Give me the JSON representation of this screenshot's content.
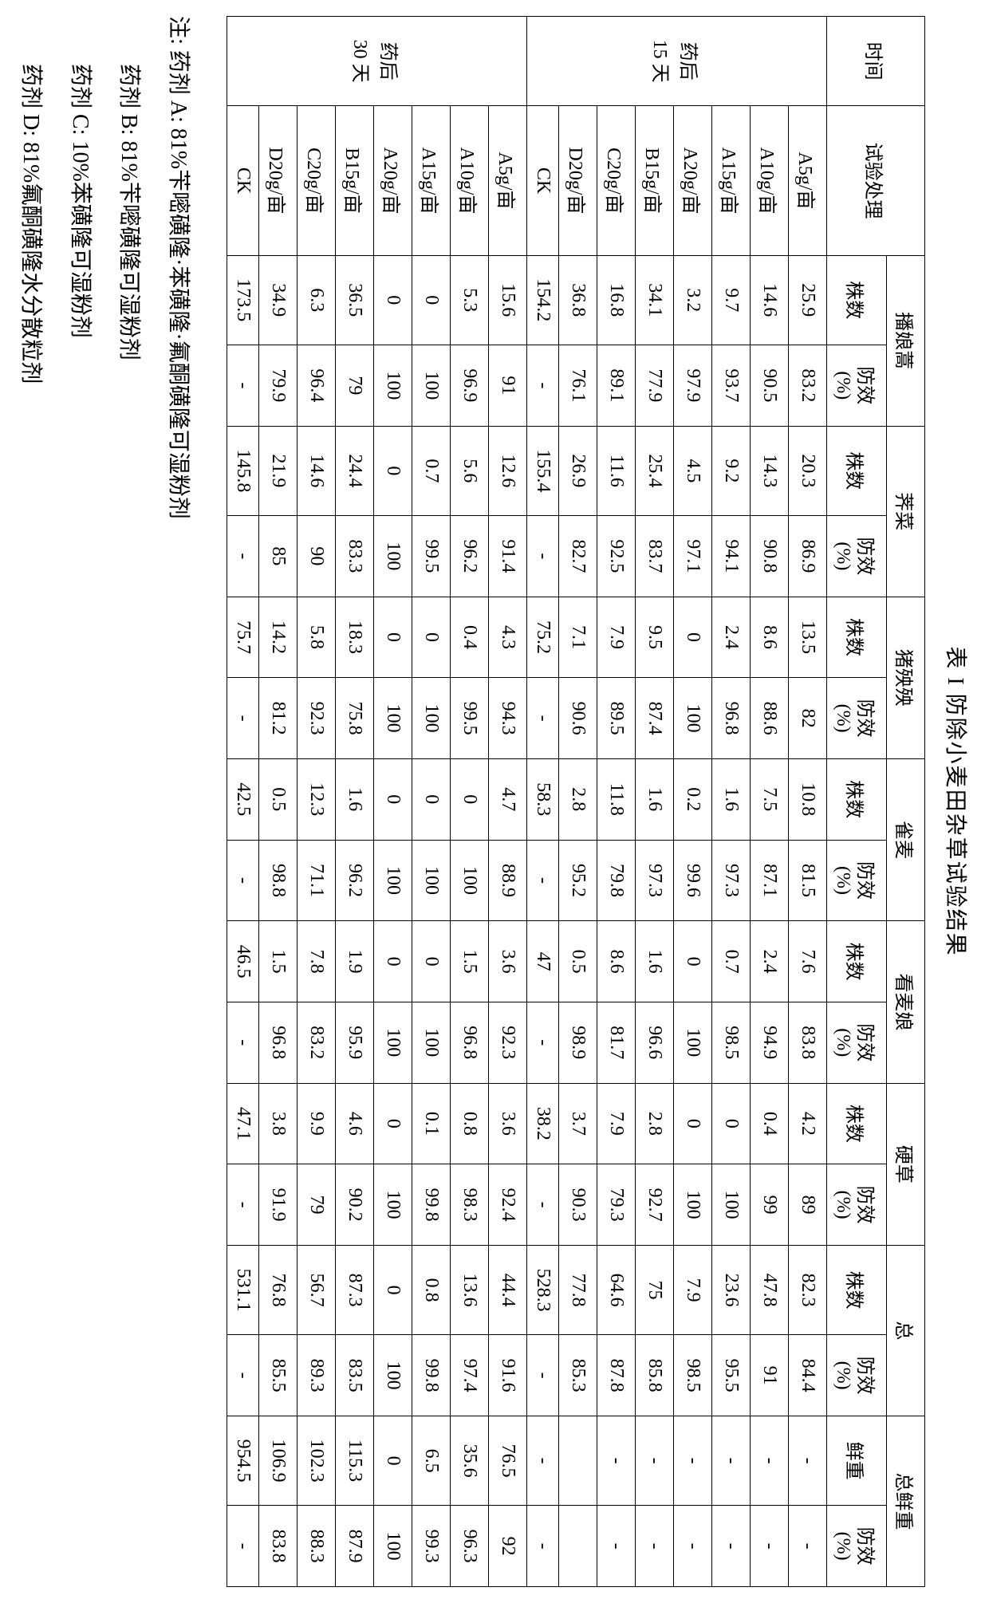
{
  "title": "表 I 防除小麦田杂草试验结果",
  "headers": {
    "time": "时间",
    "treatment": "试验处理",
    "groups": [
      "播娘蒿",
      "荠菜",
      "猪殃殃",
      "雀麦",
      "看麦娘",
      "硬草",
      "总",
      "总鲜重"
    ],
    "sub_count": "株数",
    "sub_eff": "防效\n(%)",
    "sub_weight": "鲜重",
    "sub_eff2": "防效\n(%)"
  },
  "periods": [
    {
      "label": "药后\n15 天",
      "rowspan": 8
    },
    {
      "label": "药后\n30 天",
      "rowspan": 8
    }
  ],
  "rows": [
    [
      "A5g/亩",
      "25.9",
      "83.2",
      "20.3",
      "86.9",
      "13.5",
      "82",
      "10.8",
      "81.5",
      "7.6",
      "83.8",
      "4.2",
      "89",
      "82.3",
      "84.4",
      "-",
      "-"
    ],
    [
      "A10g/亩",
      "14.6",
      "90.5",
      "14.3",
      "90.8",
      "8.6",
      "88.6",
      "7.5",
      "87.1",
      "2.4",
      "94.9",
      "0.4",
      "99",
      "47.8",
      "91",
      "-",
      "-"
    ],
    [
      "A15g/亩",
      "9.7",
      "93.7",
      "9.2",
      "94.1",
      "2.4",
      "96.8",
      "1.6",
      "97.3",
      "0.7",
      "98.5",
      "0",
      "100",
      "23.6",
      "95.5",
      "-",
      "-"
    ],
    [
      "A20g/亩",
      "3.2",
      "97.9",
      "4.5",
      "97.1",
      "0",
      "100",
      "0.2",
      "99.6",
      "0",
      "100",
      "0",
      "100",
      "7.9",
      "98.5",
      "-",
      "-"
    ],
    [
      "B15g/亩",
      "34.1",
      "77.9",
      "25.4",
      "83.7",
      "9.5",
      "87.4",
      "1.6",
      "97.3",
      "1.6",
      "96.6",
      "2.8",
      "92.7",
      "75",
      "85.8",
      "-",
      "-"
    ],
    [
      "C20g/亩",
      "16.8",
      "89.1",
      "11.6",
      "92.5",
      "7.9",
      "89.5",
      "11.8",
      "79.8",
      "8.6",
      "81.7",
      "7.9",
      "79.3",
      "64.6",
      "87.8",
      "-",
      "-"
    ],
    [
      "D20g/亩",
      "36.8",
      "76.1",
      "26.9",
      "82.7",
      "7.1",
      "90.6",
      "2.8",
      "95.2",
      "0.5",
      "98.9",
      "3.7",
      "90.3",
      "77.8",
      "85.3",
      "",
      ""
    ],
    [
      "CK",
      "154.2",
      "-",
      "155.4",
      "-",
      "75.2",
      "-",
      "58.3",
      "-",
      "47",
      "-",
      "38.2",
      "-",
      "528.3",
      "-",
      "-",
      "-"
    ],
    [
      "A5g/亩",
      "15.6",
      "91",
      "12.6",
      "91.4",
      "4.3",
      "94.3",
      "4.7",
      "88.9",
      "3.6",
      "92.3",
      "3.6",
      "92.4",
      "44.4",
      "91.6",
      "76.5",
      "92"
    ],
    [
      "A10g/亩",
      "5.3",
      "96.9",
      "5.6",
      "96.2",
      "0.4",
      "99.5",
      "0",
      "100",
      "1.5",
      "96.8",
      "0.8",
      "98.3",
      "13.6",
      "97.4",
      "35.6",
      "96.3"
    ],
    [
      "A15g/亩",
      "0",
      "100",
      "0.7",
      "99.5",
      "0",
      "100",
      "0",
      "100",
      "0",
      "100",
      "0.1",
      "99.8",
      "0.8",
      "99.8",
      "6.5",
      "99.3"
    ],
    [
      "A20g/亩",
      "0",
      "100",
      "0",
      "100",
      "0",
      "100",
      "0",
      "100",
      "0",
      "100",
      "0",
      "100",
      "0",
      "100",
      "0",
      "100"
    ],
    [
      "B15g/亩",
      "36.5",
      "79",
      "24.4",
      "83.3",
      "18.3",
      "75.8",
      "1.6",
      "96.2",
      "1.9",
      "95.9",
      "4.6",
      "90.2",
      "87.3",
      "83.5",
      "115.3",
      "87.9"
    ],
    [
      "C20g/亩",
      "6.3",
      "96.4",
      "14.6",
      "90",
      "5.8",
      "92.3",
      "12.3",
      "71.1",
      "7.8",
      "83.2",
      "9.9",
      "79",
      "56.7",
      "89.3",
      "102.3",
      "88.3"
    ],
    [
      "D20g/亩",
      "34.9",
      "79.9",
      "21.9",
      "85",
      "14.2",
      "81.2",
      "0.5",
      "98.8",
      "1.5",
      "96.8",
      "3.8",
      "91.9",
      "76.8",
      "85.5",
      "106.9",
      "83.8"
    ],
    [
      "CK",
      "173.5",
      "-",
      "145.8",
      "-",
      "75.7",
      "-",
      "42.5",
      "-",
      "46.5",
      "-",
      "47.1",
      "-",
      "531.1",
      "-",
      "954.5",
      "-"
    ]
  ],
  "notes": {
    "prefix": "注: ",
    "items": [
      "药剂 A:  81%苄嘧磺隆·苯磺隆·氟酮磺隆可湿粉剂",
      "药剂 B:  81%苄嘧磺隆可湿粉剂",
      "药剂 C:  10%苯磺隆可湿粉剂",
      "药剂 D:  81%氟酮磺隆水分散粒剂"
    ]
  }
}
